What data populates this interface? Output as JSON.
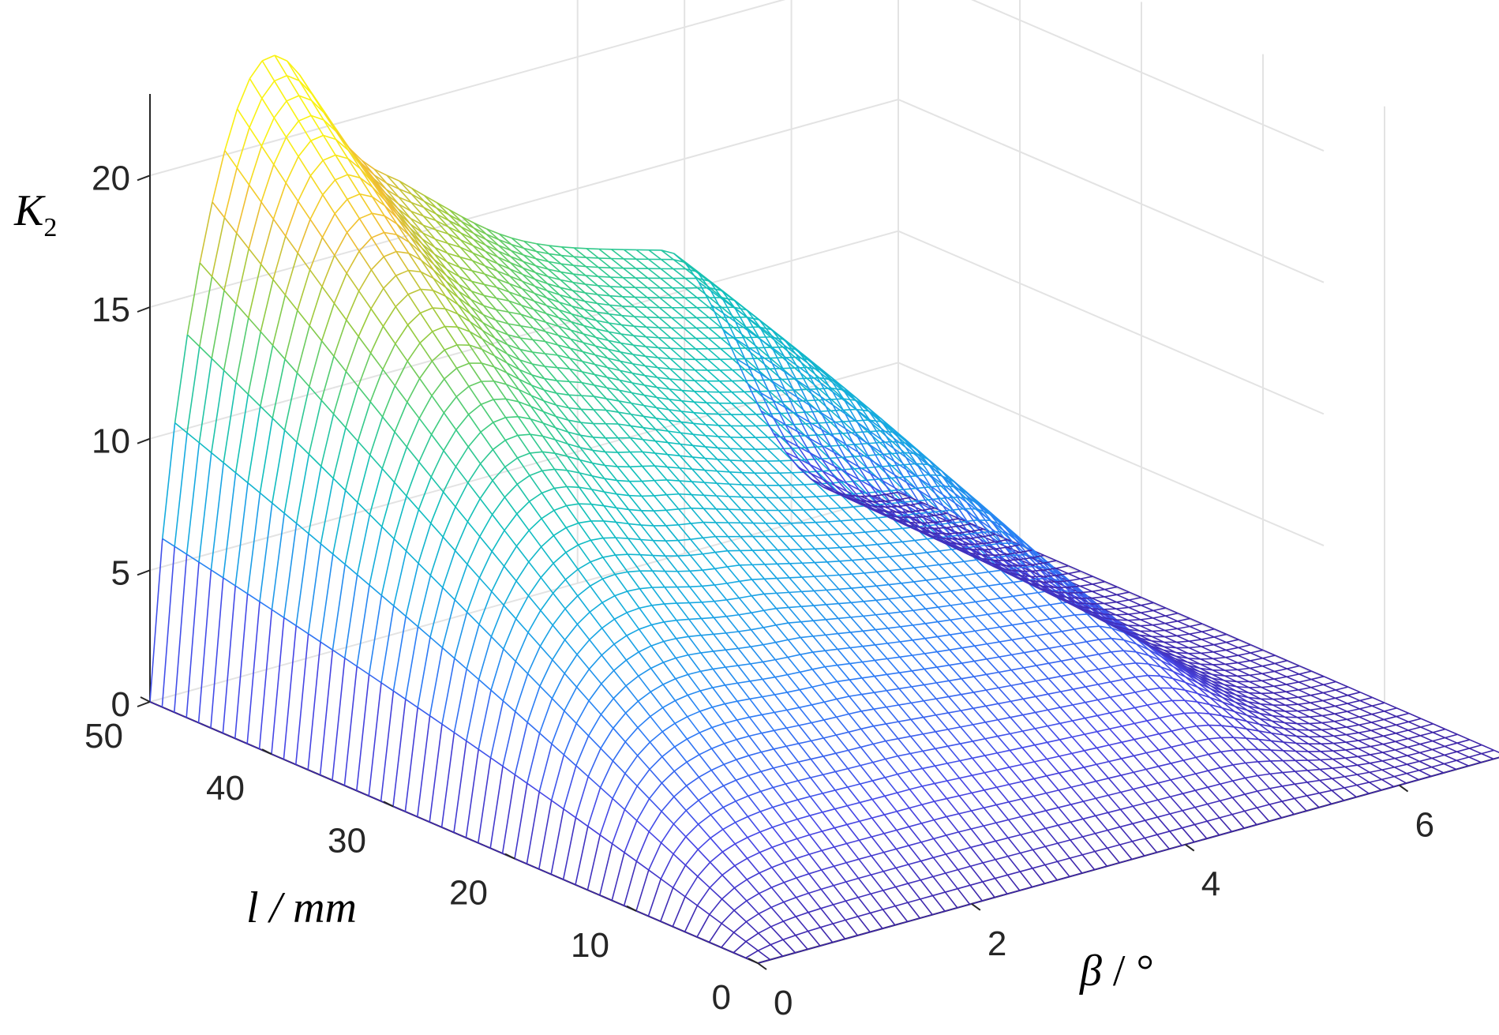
{
  "chart_data": {
    "type": "surface",
    "title": "",
    "zlabel": {
      "main": "K",
      "sub": "2"
    },
    "xlabel": {
      "main": "β",
      "rest": " / °"
    },
    "ylabel": "l / mm",
    "x_ticks": [
      "0",
      "2",
      "4",
      "6"
    ],
    "y_ticks": [
      "0",
      "10",
      "20",
      "30",
      "40",
      "50"
    ],
    "z_ticks": [
      "0",
      "5",
      "10",
      "15",
      "20"
    ],
    "xlim": [
      0,
      7
    ],
    "ylim": [
      0,
      50
    ],
    "zlim": [
      0,
      21
    ],
    "grid": true,
    "colormap": "parula",
    "mesh_x_steps": 60,
    "mesh_y_steps": 50,
    "sample_values": {
      "x": [
        0,
        1,
        2,
        3,
        4,
        5,
        6,
        7
      ],
      "y_at_x0": [
        0,
        0,
        0,
        0,
        0,
        0
      ],
      "z_at_y50": [
        0,
        20.6,
        17.2,
        16.8,
        15.2,
        12.8,
        8.0,
        0.5
      ],
      "z_at_y25": [
        0,
        9.5,
        11.8,
        11.2,
        9.8,
        8.0,
        5.0,
        0.3
      ],
      "z_max": 21.0,
      "z_max_at": {
        "x": 1.0,
        "y": 50
      }
    }
  }
}
